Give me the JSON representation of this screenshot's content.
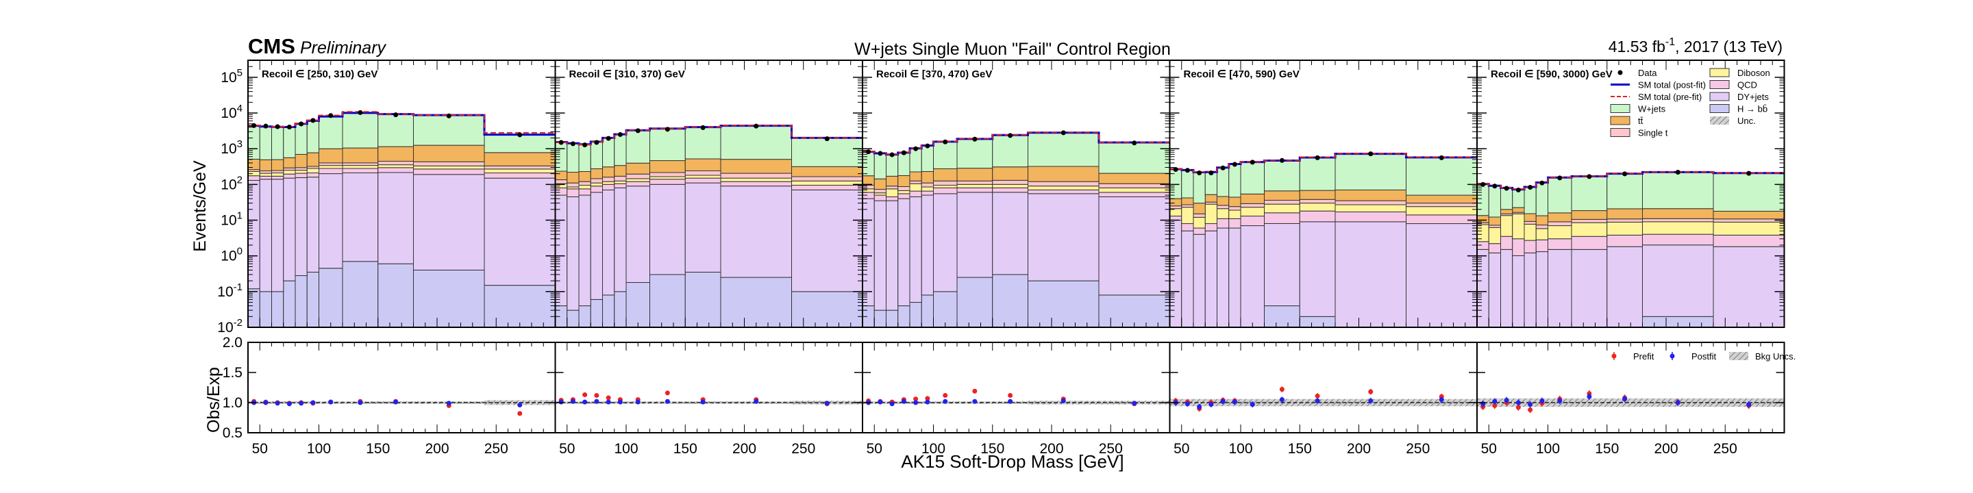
{
  "header": {
    "experiment": "CMS",
    "status": "Preliminary",
    "title": "W+jets Single Muon \"Fail\" Control Region",
    "lumi_value": "41.53 fb",
    "lumi_exp": "-1",
    "lumi_rest": ", 2017 (13 TeV)"
  },
  "colors": {
    "wjets": "#c9f7c9",
    "ttbar": "#f2b45c",
    "singlet": "#ffc6cc",
    "diboson": "#fff49a",
    "qcd": "#f7c8e6",
    "dyjets": "#e3cdf7",
    "hbb": "#cccaf5",
    "postfit_line": "#0000cc",
    "prefit_line": "#dd2222",
    "data": "#000000",
    "ratio_prefit": "#ee2222",
    "ratio_postfit": "#2222ee",
    "band": "#b4b4b4"
  },
  "chart_data": {
    "type": "bar",
    "stacked": true,
    "xlabel": "AK15 Soft-Drop Mass [GeV]",
    "ylabel": "Events/GeV",
    "ratio_ylabel": "Obs/Exp",
    "yscale": "log",
    "ylim": [
      0.01,
      300000
    ],
    "ratio_ylim": [
      0.5,
      2.0
    ],
    "xlim": [
      40,
      300
    ],
    "x_ticks": [
      "50",
      "100",
      "150",
      "200",
      "250"
    ],
    "y_ticks": [
      "10",
      "10",
      "10",
      "10",
      "10",
      "10",
      "10",
      "10"
    ],
    "y_tick_exps": [
      "-2",
      "-1",
      "0",
      "1",
      "2",
      "3",
      "4",
      "5"
    ],
    "ratio_y_ticks": [
      "0.5",
      "1.0",
      "1.5",
      "2.0"
    ],
    "bin_edges": [
      40,
      50,
      60,
      70,
      80,
      90,
      100,
      120,
      150,
      180,
      240,
      300
    ],
    "legend": [
      {
        "key": "data",
        "label": "Data",
        "kind": "marker"
      },
      {
        "key": "postfit_line",
        "label": "SM total (post-fit)",
        "kind": "line"
      },
      {
        "key": "prefit_line",
        "label": "SM total (pre-fit)",
        "kind": "dashed"
      },
      {
        "key": "wjets",
        "label": "W+jets",
        "kind": "fill"
      },
      {
        "key": "ttbar",
        "label": "tt̄",
        "kind": "fill"
      },
      {
        "key": "singlet",
        "label": "Single t",
        "kind": "fill"
      },
      {
        "key": "diboson",
        "label": "Diboson",
        "kind": "fill"
      },
      {
        "key": "qcd",
        "label": "QCD",
        "kind": "fill"
      },
      {
        "key": "dyjets",
        "label": "DY+jets",
        "kind": "fill"
      },
      {
        "key": "hbb",
        "label": "H → bb̄",
        "kind": "fill"
      },
      {
        "key": "band",
        "label": "Unc.",
        "kind": "hatch"
      }
    ],
    "ratio_legend": [
      {
        "key": "ratio_prefit",
        "label": "Prefit",
        "kind": "marker"
      },
      {
        "key": "ratio_postfit",
        "label": "Postfit",
        "kind": "marker"
      },
      {
        "key": "band",
        "label": "Bkg Uncs.",
        "kind": "hatch"
      }
    ],
    "panels": [
      {
        "label": "Recoil ∈ [250, 310) GeV",
        "series": {
          "hbb": [
            0.12,
            0.1,
            0.1,
            0.2,
            0.28,
            0.35,
            0.45,
            0.7,
            0.6,
            0.4,
            0.15
          ],
          "dyjets": [
            130,
            140,
            140,
            150,
            155,
            160,
            200,
            210,
            215,
            190,
            150
          ],
          "qcd": [
            45,
            30,
            30,
            45,
            50,
            50,
            80,
            70,
            80,
            80,
            60
          ],
          "diboson": [
            55,
            35,
            40,
            55,
            45,
            70,
            60,
            60,
            60,
            60,
            60
          ],
          "singlet": [
            30,
            35,
            35,
            40,
            45,
            40,
            60,
            60,
            90,
            100,
            60
          ],
          "ttbar": [
            250,
            250,
            250,
            270,
            400,
            450,
            600,
            650,
            700,
            820,
            450
          ],
          "wjets": [
            3900,
            3700,
            3600,
            3500,
            4300,
            5300,
            7000,
            9000,
            8200,
            7500,
            1700
          ]
        },
        "prefit_total": [
          4500,
          4250,
          4150,
          4150,
          5100,
          6300,
          8600,
          10800,
          9400,
          8700,
          2800
        ],
        "data": [
          4450,
          4300,
          4150,
          4050,
          4950,
          6200,
          8500,
          10300,
          8900,
          8300,
          2450
        ],
        "ratio_prefit": [
          1.02,
          1.01,
          1.0,
          0.99,
          1.0,
          0.99,
          1.01,
          1.02,
          1.02,
          0.95,
          0.82
        ],
        "ratio_postfit": [
          1.0,
          1.0,
          0.99,
          0.98,
          0.99,
          1.0,
          1.01,
          1.0,
          1.01,
          0.99,
          0.96
        ],
        "ratio_unc": [
          0.02,
          0.02,
          0.02,
          0.02,
          0.02,
          0.02,
          0.02,
          0.02,
          0.02,
          0.02,
          0.04
        ]
      },
      {
        "label": "Recoil ∈ [310, 370) GeV",
        "series": {
          "hbb": [
            0.04,
            0.03,
            0.04,
            0.06,
            0.08,
            0.1,
            0.18,
            0.3,
            0.35,
            0.25,
            0.1
          ],
          "dyjets": [
            50,
            45,
            50,
            60,
            70,
            80,
            90,
            100,
            110,
            90,
            70
          ],
          "qcd": [
            30,
            30,
            25,
            30,
            30,
            25,
            30,
            40,
            40,
            30,
            25
          ],
          "diboson": [
            25,
            10,
            20,
            20,
            20,
            20,
            25,
            25,
            30,
            30,
            30
          ],
          "singlet": [
            30,
            25,
            25,
            35,
            40,
            45,
            50,
            50,
            60,
            55,
            40
          ],
          "ttbar": [
            100,
            110,
            110,
            130,
            150,
            170,
            200,
            250,
            280,
            300,
            150
          ],
          "wjets": [
            1300,
            1200,
            1100,
            1300,
            1700,
            2200,
            2900,
            3200,
            3500,
            3900,
            1700
          ]
        },
        "prefit_total": [
          1520,
          1400,
          1310,
          1550,
          2010,
          2560,
          3300,
          3700,
          4050,
          4450,
          2000
        ],
        "data": [
          1500,
          1380,
          1280,
          1500,
          1950,
          2500,
          3200,
          3500,
          3900,
          4300,
          1900
        ],
        "ratio_prefit": [
          1.04,
          1.05,
          1.13,
          1.12,
          1.08,
          1.05,
          1.05,
          1.16,
          1.05,
          1.05,
          0.98
        ],
        "ratio_postfit": [
          1.01,
          1.02,
          1.01,
          1.02,
          1.01,
          1.01,
          1.01,
          1.02,
          1.01,
          1.02,
          0.99
        ],
        "ratio_unc": [
          0.02,
          0.02,
          0.02,
          0.02,
          0.02,
          0.02,
          0.02,
          0.02,
          0.02,
          0.02,
          0.03
        ]
      },
      {
        "label": "Recoil ∈ [370, 470) GeV",
        "series": {
          "hbb": [
            0.04,
            0.03,
            0.03,
            0.04,
            0.05,
            0.08,
            0.1,
            0.25,
            0.3,
            0.2,
            0.08
          ],
          "dyjets": [
            40,
            35,
            35,
            40,
            45,
            50,
            55,
            60,
            60,
            55,
            45
          ],
          "qcd": [
            20,
            15,
            10,
            15,
            20,
            15,
            25,
            20,
            20,
            15,
            15
          ],
          "diboson": [
            15,
            8,
            30,
            12,
            40,
            20,
            15,
            20,
            20,
            20,
            20
          ],
          "singlet": [
            20,
            15,
            15,
            20,
            20,
            25,
            30,
            25,
            30,
            30,
            25
          ],
          "ttbar": [
            80,
            70,
            80,
            90,
            100,
            120,
            150,
            160,
            180,
            200,
            100
          ],
          "wjets": [
            650,
            600,
            520,
            600,
            800,
            1000,
            1300,
            1600,
            2100,
            2500,
            1300
          ]
        },
        "prefit_total": [
          840,
          760,
          700,
          790,
          1040,
          1250,
          1600,
          1920,
          2450,
          2880,
          1520
        ],
        "data": [
          820,
          740,
          680,
          770,
          1000,
          1200,
          1550,
          1850,
          2350,
          2800,
          1450
        ],
        "ratio_prefit": [
          1.03,
          1.02,
          1.01,
          1.05,
          1.06,
          1.07,
          1.12,
          1.19,
          1.12,
          1.06,
          0.98
        ],
        "ratio_postfit": [
          1.0,
          1.01,
          0.98,
          1.02,
          1.0,
          1.01,
          1.02,
          1.02,
          1.02,
          1.03,
          0.99
        ],
        "ratio_unc": [
          0.02,
          0.02,
          0.02,
          0.02,
          0.02,
          0.02,
          0.02,
          0.02,
          0.02,
          0.03,
          0.03
        ]
      },
      {
        "label": "Recoil ∈ [470, 590) GeV",
        "series": {
          "hbb": [
            0.01,
            0.01,
            0.01,
            0.01,
            0.01,
            0.01,
            0.01,
            0.04,
            0.02,
            0.01,
            0.01
          ],
          "dyjets": [
            10,
            5,
            4,
            5,
            6,
            6,
            7,
            8,
            9,
            9,
            8
          ],
          "qcd": [
            3,
            3,
            2,
            3,
            5,
            5,
            6,
            8,
            9,
            8,
            6
          ],
          "diboson": [
            8,
            15,
            6,
            20,
            10,
            8,
            10,
            12,
            12,
            10,
            10
          ],
          "singlet": [
            4,
            4,
            3,
            4,
            5,
            5,
            6,
            8,
            8,
            8,
            6
          ],
          "ttbar": [
            15,
            15,
            15,
            20,
            20,
            20,
            25,
            30,
            30,
            35,
            20
          ],
          "wjets": [
            230,
            210,
            190,
            170,
            250,
            330,
            370,
            400,
            500,
            650,
            520
          ]
        },
        "prefit_total": [
          275,
          258,
          225,
          230,
          300,
          380,
          430,
          470,
          580,
          730,
          580
        ],
        "data": [
          262,
          248,
          210,
          210,
          290,
          365,
          420,
          470,
          560,
          720,
          560
        ],
        "ratio_prefit": [
          1.03,
          1.01,
          0.9,
          1.0,
          1.04,
          1.03,
          0.97,
          1.22,
          1.11,
          1.18,
          1.1
        ],
        "ratio_postfit": [
          1.0,
          0.98,
          0.93,
          0.97,
          1.02,
          1.01,
          0.97,
          1.05,
          1.03,
          1.03,
          1.05
        ],
        "ratio_unc": [
          0.06,
          0.06,
          0.06,
          0.06,
          0.06,
          0.06,
          0.06,
          0.06,
          0.06,
          0.06,
          0.06
        ]
      },
      {
        "label": "Recoil ∈ [590, 3000) GeV",
        "series": {
          "hbb": [
            0.01,
            0.01,
            0.01,
            0.01,
            0.01,
            0.01,
            0.01,
            0.01,
            0.01,
            0.02,
            0.01
          ],
          "dyjets": [
            1.5,
            1.2,
            1.5,
            1.0,
            1.2,
            1.3,
            1.5,
            1.5,
            1.8,
            2.0,
            1.8
          ],
          "qcd": [
            1.0,
            1.0,
            2.0,
            2.0,
            1.5,
            1.5,
            1.5,
            2.0,
            2.0,
            2.0,
            2.0
          ],
          "diboson": [
            5,
            4,
            10,
            12,
            5,
            3,
            4,
            5,
            5,
            5,
            5
          ],
          "singlet": [
            1.0,
            1.0,
            1.5,
            1.5,
            1.5,
            1.5,
            2.0,
            2.0,
            2.0,
            2.0,
            2.0
          ],
          "ttbar": [
            5,
            5,
            5,
            6,
            6,
            6,
            7,
            8,
            10,
            10,
            7
          ],
          "wjets": [
            90,
            80,
            60,
            50,
            70,
            100,
            140,
            150,
            180,
            200,
            190
          ]
        },
        "prefit_total": [
          105,
          95,
          82,
          74,
          87,
          114,
          157,
          170,
          202,
          222,
          209
        ],
        "data": [
          100,
          90,
          78,
          70,
          83,
          110,
          152,
          166,
          198,
          220,
          205
        ],
        "ratio_prefit": [
          0.93,
          0.95,
          1.0,
          0.92,
          0.88,
          0.99,
          1.06,
          1.15,
          1.08,
          1.01,
          0.95
        ],
        "ratio_postfit": [
          0.98,
          1.02,
          1.04,
          1.0,
          0.97,
          1.03,
          1.03,
          1.1,
          1.06,
          1.0,
          0.97
        ],
        "ratio_unc": [
          0.07,
          0.07,
          0.07,
          0.07,
          0.07,
          0.07,
          0.07,
          0.07,
          0.07,
          0.07,
          0.07
        ]
      }
    ]
  }
}
